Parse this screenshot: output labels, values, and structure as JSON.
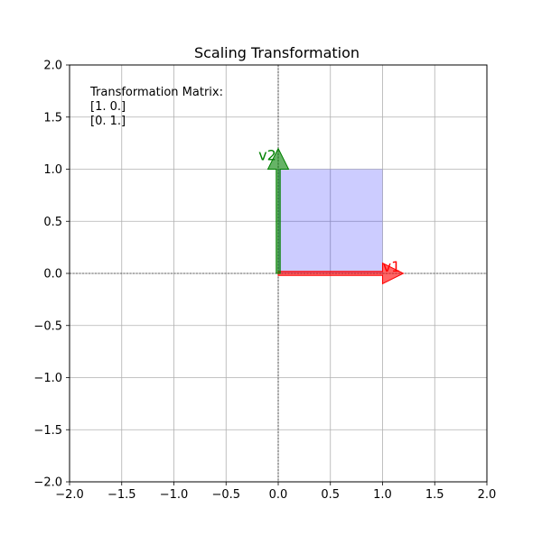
{
  "chart_data": {
    "type": "vector_transformation",
    "title": "Scaling Transformation",
    "xlabel": "",
    "ylabel": "",
    "xlim": [
      -2.0,
      2.0
    ],
    "ylim": [
      -2.0,
      2.0
    ],
    "x_ticks": [
      -2.0,
      -1.5,
      -1.0,
      -0.5,
      0.0,
      0.5,
      1.0,
      1.5,
      2.0
    ],
    "y_ticks": [
      -2.0,
      -1.5,
      -1.0,
      -0.5,
      0.0,
      0.5,
      1.0,
      1.5,
      2.0
    ],
    "x_tick_labels": [
      "−2.0",
      "−1.5",
      "−1.0",
      "−0.5",
      "0.0",
      "0.5",
      "1.0",
      "1.5",
      "2.0"
    ],
    "y_tick_labels": [
      "−2.0",
      "−1.5",
      "−1.0",
      "−0.5",
      "0.0",
      "0.5",
      "1.0",
      "1.5",
      "2.0"
    ],
    "grid": true,
    "matrix": [
      [
        1.0,
        0.0
      ],
      [
        0.0,
        1.0
      ]
    ],
    "annotation_lines": [
      "Transformation Matrix:",
      "[1. 0.]",
      "[0. 1.]"
    ],
    "vectors": [
      {
        "name": "v1",
        "x": 1.0,
        "y": 0.0,
        "color": "#ff0000"
      },
      {
        "name": "v2",
        "x": 0.0,
        "y": 1.0,
        "color": "#008000"
      }
    ],
    "transformed_region": {
      "corners": [
        [
          0,
          0
        ],
        [
          1,
          0
        ],
        [
          1,
          1
        ],
        [
          0,
          1
        ]
      ],
      "fill": "#0000ff"
    }
  }
}
